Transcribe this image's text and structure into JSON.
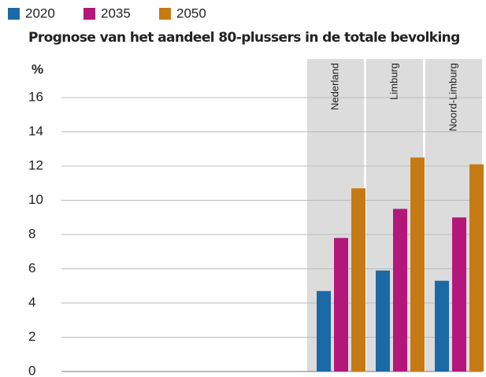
{
  "chart_data": {
    "type": "bar",
    "title": "Prognose van het aandeel 80-plussers in de totale bevolking",
    "y_label": "%",
    "categories": [
      "Nederland",
      "Limburg",
      "Noord-Limburg"
    ],
    "series": [
      {
        "name": "2020",
        "color": "#1b6aa6",
        "values": [
          4.7,
          5.9,
          5.3
        ]
      },
      {
        "name": "2035",
        "color": "#b3177b",
        "values": [
          7.8,
          9.5,
          9.0
        ]
      },
      {
        "name": "2050",
        "color": "#c67a14",
        "values": [
          10.7,
          12.5,
          12.1
        ]
      }
    ],
    "ylim": [
      0,
      16
    ],
    "yticks": [
      0,
      2,
      4,
      6,
      8,
      10,
      12,
      14,
      16
    ],
    "grid": true
  }
}
